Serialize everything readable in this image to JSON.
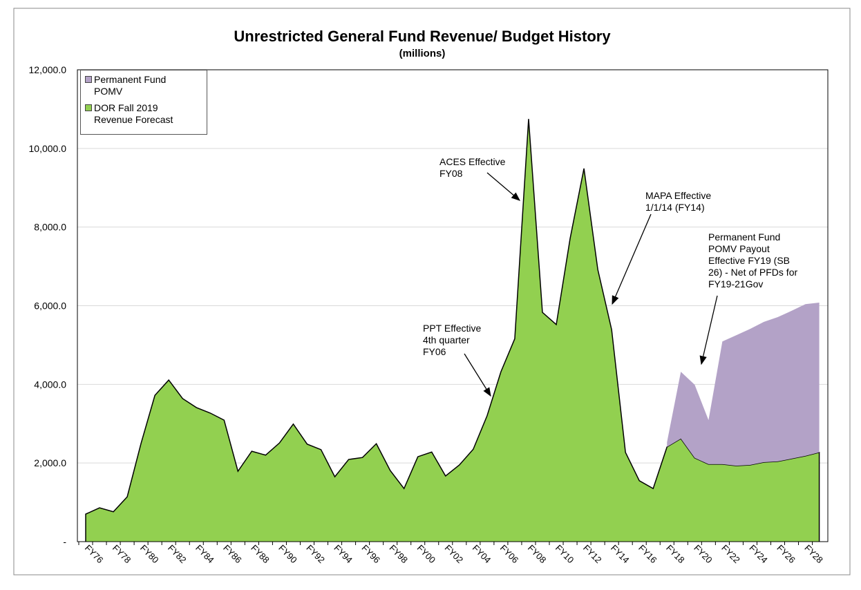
{
  "chart_data": {
    "type": "stacked_area",
    "title": "Unrestricted General Fund Revenue/ Budget History",
    "subtitle": "(millions)",
    "categories": [
      "FY76",
      null,
      "FY78",
      null,
      "FY80",
      null,
      "FY82",
      null,
      "FY84",
      null,
      "FY86",
      null,
      "FY88",
      null,
      "FY90",
      null,
      "FY92",
      null,
      "FY94",
      null,
      "FY96",
      null,
      "FY98",
      null,
      "FY00",
      null,
      "FY02",
      null,
      "FY04",
      null,
      "FY06",
      null,
      "FY08",
      null,
      "FY10",
      null,
      "FY12",
      null,
      "FY14",
      null,
      "FY16",
      null,
      "FY18",
      null,
      "FY20",
      null,
      "FY22",
      null,
      "FY24",
      null,
      "FY26",
      null,
      "FY28",
      null
    ],
    "series": [
      {
        "name": "DOR Fall 2019 Revenue Forecast",
        "color": "#92d050",
        "values": [
          700,
          860,
          760,
          1140,
          2500,
          3720,
          4110,
          3640,
          3410,
          3270,
          3090,
          1790,
          2300,
          2200,
          2510,
          2990,
          2480,
          2340,
          1650,
          2090,
          2140,
          2490,
          1810,
          1350,
          2160,
          2280,
          1670,
          1950,
          2350,
          3200,
          4320,
          5160,
          10750,
          5830,
          5520,
          7710,
          9490,
          6920,
          5390,
          2270,
          1550,
          1350,
          2410,
          2620,
          2130,
          1970,
          1970,
          1930,
          1950,
          2020,
          2040,
          2110,
          2180,
          2270
        ]
      },
      {
        "name": "Permanent Fund POMV",
        "color": "#b3a2c7",
        "values": [
          null,
          null,
          null,
          null,
          null,
          null,
          null,
          null,
          null,
          null,
          null,
          null,
          null,
          null,
          null,
          null,
          null,
          null,
          null,
          null,
          null,
          null,
          null,
          null,
          null,
          null,
          null,
          null,
          null,
          null,
          null,
          null,
          null,
          null,
          null,
          null,
          null,
          null,
          null,
          null,
          null,
          null,
          120,
          1700,
          1860,
          1120,
          3120,
          3320,
          3460,
          3570,
          3670,
          3760,
          3860,
          3810
        ]
      }
    ],
    "ylim": [
      0,
      12000
    ],
    "yticks": [
      {
        "value": 0,
        "label": "-"
      },
      {
        "value": 2000,
        "label": "2,000.0"
      },
      {
        "value": 4000,
        "label": "4,000.0"
      },
      {
        "value": 6000,
        "label": "6,000.0"
      },
      {
        "value": 8000,
        "label": "8,000.0"
      },
      {
        "value": 10000,
        "label": "10,000.0"
      },
      {
        "value": 12000,
        "label": "12,000.0"
      }
    ],
    "grid": true,
    "legend": "top-left",
    "annotations": [
      {
        "lines": [
          "ACES Effective",
          "FY08"
        ]
      },
      {
        "lines": [
          "MAPA Effective",
          "1/1/14 (FY14)"
        ]
      },
      {
        "lines": [
          "PPT Effective",
          "4th quarter",
          "FY06"
        ]
      },
      {
        "lines": [
          "Permanent Fund",
          "POMV Payout",
          "Effective FY19 (SB",
          "26) - Net of PFDs  for",
          "FY19-21Gov"
        ]
      }
    ]
  }
}
